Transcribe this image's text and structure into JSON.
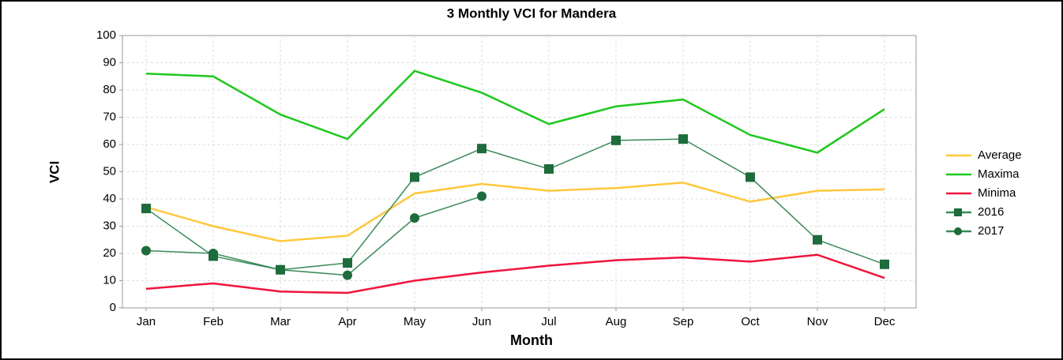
{
  "chart_data": {
    "type": "line",
    "title": "3 Monthly VCI for Mandera",
    "xlabel": "Month",
    "ylabel": "VCI",
    "categories": [
      "Jan",
      "Feb",
      "Mar",
      "Apr",
      "May",
      "Jun",
      "Jul",
      "Aug",
      "Sep",
      "Oct",
      "Nov",
      "Dec"
    ],
    "series": [
      {
        "name": "Average",
        "color": "#ffc83c",
        "marker": "none",
        "values": [
          37,
          30,
          24.5,
          26.5,
          42,
          45.5,
          43,
          44,
          46,
          39,
          43,
          43.5
        ]
      },
      {
        "name": "Maxima",
        "color": "#1ec81e",
        "marker": "none",
        "values": [
          86,
          85,
          71,
          62,
          87,
          79,
          67.5,
          74,
          76.5,
          63.5,
          57,
          73
        ]
      },
      {
        "name": "Minima",
        "color": "#f0143c",
        "marker": "none",
        "values": [
          7,
          9,
          6,
          5.5,
          10,
          13,
          15.5,
          17.5,
          18.5,
          17,
          19.5,
          11
        ]
      },
      {
        "name": "2016",
        "color": "#1e6b3c",
        "marker": "square",
        "values": [
          36.5,
          19,
          14,
          16.5,
          48,
          58.5,
          51,
          61.5,
          62,
          48,
          25,
          16
        ]
      },
      {
        "name": "2017",
        "color": "#1e6b3c",
        "marker": "circle",
        "values": [
          21,
          20,
          14,
          12,
          33,
          41,
          null,
          null,
          null,
          null,
          null,
          null
        ]
      }
    ],
    "ylim": [
      0,
      100
    ],
    "yticks": [
      0,
      10,
      20,
      30,
      40,
      50,
      60,
      70,
      80,
      90,
      100
    ],
    "grid": true,
    "legend": "right"
  }
}
